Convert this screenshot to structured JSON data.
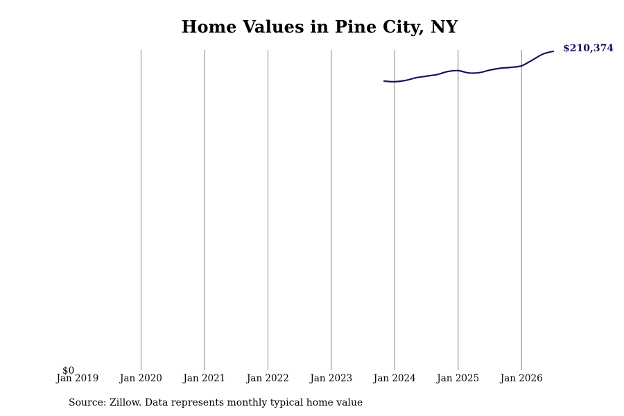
{
  "chart_data": {
    "type": "line",
    "title": "Home Values in Pine City, NY",
    "xlabel": "",
    "ylabel": "",
    "x_ticks": [
      "Jan 2019",
      "Jan 2020",
      "Jan 2021",
      "Jan 2022",
      "Jan 2023",
      "Jan 2024",
      "Jan 2025",
      "Jan 2026"
    ],
    "y_ticks": [
      "$0"
    ],
    "x_range": [
      "2019-01",
      "2026-07"
    ],
    "y_range": [
      0,
      210374
    ],
    "grid": "vertical",
    "legend": "none",
    "series": [
      {
        "color": "#14145f",
        "end_label": "$210,374",
        "points": [
          {
            "x": "2023-11",
            "y": 190700
          },
          {
            "x": "2024-01",
            "y": 190300
          },
          {
            "x": "2024-03",
            "y": 191100
          },
          {
            "x": "2024-05",
            "y": 192900
          },
          {
            "x": "2024-07",
            "y": 194000
          },
          {
            "x": "2024-09",
            "y": 195000
          },
          {
            "x": "2024-11",
            "y": 197000
          },
          {
            "x": "2025-01",
            "y": 197600
          },
          {
            "x": "2025-03",
            "y": 196100
          },
          {
            "x": "2025-05",
            "y": 196300
          },
          {
            "x": "2025-07",
            "y": 198000
          },
          {
            "x": "2025-09",
            "y": 199200
          },
          {
            "x": "2025-11",
            "y": 199800
          },
          {
            "x": "2026-01",
            "y": 200800
          },
          {
            "x": "2026-03",
            "y": 204500
          },
          {
            "x": "2026-05",
            "y": 208500
          },
          {
            "x": "2026-07",
            "y": 210374
          }
        ]
      }
    ]
  },
  "footer": {
    "source": "Source: Zillow. Data represents monthly typical home value"
  }
}
